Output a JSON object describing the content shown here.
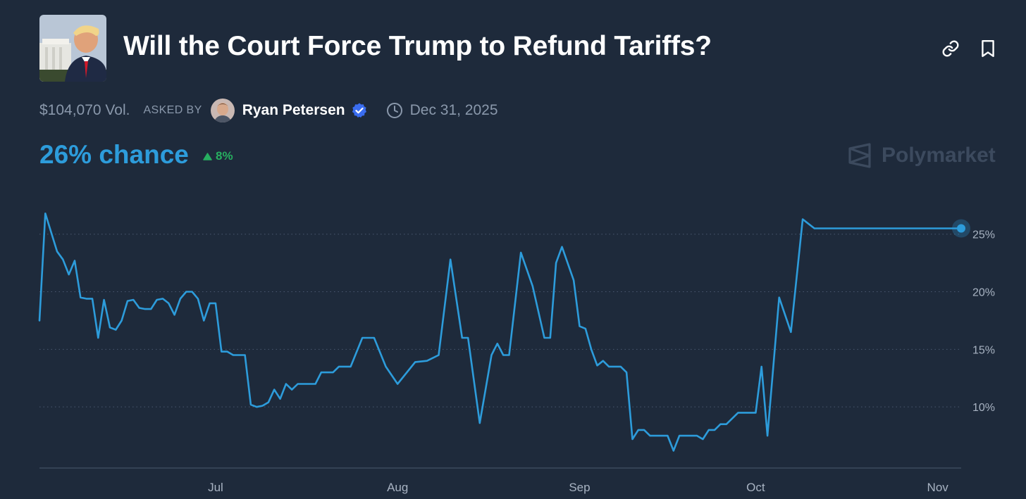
{
  "header": {
    "title": "Will the Court Force Trump to Refund Tariffs?",
    "thumbnail_icon": "market-thumbnail",
    "link_icon": "link-icon",
    "bookmark_icon": "bookmark-icon"
  },
  "meta": {
    "volume": "$104,070 Vol.",
    "asked_by_label": "ASKED BY",
    "author": "Ryan Petersen",
    "verified_icon": "verified-badge-icon",
    "date": "Dec 31, 2025"
  },
  "summary": {
    "chance": "26% chance",
    "change": "8%"
  },
  "brand": {
    "name": "Polymarket"
  },
  "colors": {
    "background": "#1e2a3b",
    "line": "#2d9cdb",
    "positive": "#27ae60",
    "muted": "#8a98ab"
  },
  "chart_data": {
    "type": "line",
    "x_tick_labels": [
      "Jul",
      "Aug",
      "Sep",
      "Oct",
      "Nov"
    ],
    "y_tick_labels": [
      "10%",
      "15%",
      "20%",
      "25%"
    ],
    "y_ticks": [
      10,
      15,
      20,
      25
    ],
    "ylim": [
      5,
      27
    ],
    "grid": true,
    "series": [
      {
        "x": [
          "2025-06-01",
          "2025-06-02",
          "2025-06-04",
          "2025-06-05",
          "2025-06-06",
          "2025-06-07",
          "2025-06-08",
          "2025-06-09",
          "2025-06-10",
          "2025-06-11",
          "2025-06-12",
          "2025-06-13",
          "2025-06-14",
          "2025-06-15",
          "2025-06-16",
          "2025-06-17",
          "2025-06-18",
          "2025-06-19",
          "2025-06-20",
          "2025-06-21",
          "2025-06-22",
          "2025-06-23",
          "2025-06-24",
          "2025-06-25",
          "2025-06-26",
          "2025-06-27",
          "2025-06-28",
          "2025-06-29",
          "2025-06-30",
          "2025-07-01",
          "2025-07-02",
          "2025-07-03",
          "2025-07-04",
          "2025-07-05",
          "2025-07-06",
          "2025-07-07",
          "2025-07-08",
          "2025-07-09",
          "2025-07-10",
          "2025-07-11",
          "2025-07-12",
          "2025-07-13",
          "2025-07-14",
          "2025-07-15",
          "2025-07-16",
          "2025-07-17",
          "2025-07-18",
          "2025-07-19",
          "2025-07-20",
          "2025-07-21",
          "2025-07-22",
          "2025-07-24",
          "2025-07-26",
          "2025-07-28",
          "2025-07-30",
          "2025-08-01",
          "2025-08-04",
          "2025-08-06",
          "2025-08-08",
          "2025-08-10",
          "2025-08-12",
          "2025-08-13",
          "2025-08-15",
          "2025-08-17",
          "2025-08-18",
          "2025-08-19",
          "2025-08-20",
          "2025-08-22",
          "2025-08-24",
          "2025-08-26",
          "2025-08-27",
          "2025-08-28",
          "2025-08-29",
          "2025-08-31",
          "2025-09-01",
          "2025-09-02",
          "2025-09-03",
          "2025-09-04",
          "2025-09-05",
          "2025-09-06",
          "2025-09-07",
          "2025-09-08",
          "2025-09-09",
          "2025-09-10",
          "2025-09-11",
          "2025-09-12",
          "2025-09-13",
          "2025-09-14",
          "2025-09-15",
          "2025-09-16",
          "2025-09-17",
          "2025-09-18",
          "2025-09-19",
          "2025-09-20",
          "2025-09-21",
          "2025-09-22",
          "2025-09-23",
          "2025-09-24",
          "2025-09-25",
          "2025-09-26",
          "2025-09-28",
          "2025-09-30",
          "2025-10-01",
          "2025-10-02",
          "2025-10-03",
          "2025-10-05",
          "2025-10-07",
          "2025-10-09",
          "2025-10-11",
          "2025-10-13",
          "2025-10-15",
          "2025-10-17",
          "2025-10-19",
          "2025-10-21",
          "2025-10-23",
          "2025-10-25",
          "2025-10-27",
          "2025-10-29",
          "2025-10-31",
          "2025-11-01",
          "2025-11-02",
          "2025-11-03",
          "2025-11-04",
          "2025-11-05"
        ],
        "y": [
          17.5,
          26.8,
          23.5,
          22.8,
          21.5,
          22.7,
          19.5,
          19.4,
          19.4,
          16.0,
          19.3,
          16.9,
          16.7,
          17.5,
          19.2,
          19.3,
          18.6,
          18.5,
          18.5,
          19.3,
          19.4,
          19.0,
          18.0,
          19.4,
          20.0,
          20.0,
          19.4,
          17.5,
          19.0,
          19.0,
          14.8,
          14.8,
          14.5,
          14.5,
          14.5,
          10.2,
          10.0,
          10.1,
          10.4,
          11.5,
          10.7,
          12.0,
          11.5,
          12.0,
          12.0,
          12.0,
          12.0,
          13.0,
          13.0,
          13.0,
          13.5,
          13.5,
          16.0,
          16.0,
          13.5,
          12.0,
          13.9,
          14.0,
          14.5,
          22.8,
          16.0,
          16.0,
          8.6,
          14.5,
          15.5,
          14.5,
          14.5,
          23.4,
          20.5,
          16.0,
          16.0,
          22.5,
          23.9,
          21.0,
          17.0,
          16.8,
          15.0,
          13.6,
          14.0,
          13.5,
          13.5,
          13.5,
          13.0,
          7.2,
          8.0,
          8.0,
          7.5,
          7.5,
          7.5,
          7.5,
          6.2,
          7.5,
          7.5,
          7.5,
          7.5,
          7.2,
          8.0,
          8.0,
          8.5,
          8.5,
          9.5,
          9.5,
          9.5,
          13.5,
          7.5,
          19.5,
          16.5,
          26.3,
          25.5,
          25.5,
          25.5,
          25.5,
          25.5,
          25.5,
          25.5,
          25.5,
          25.5,
          25.5,
          25.5,
          25.5,
          25.5,
          25.5,
          25.5,
          25.5
        ]
      }
    ],
    "xlim": [
      "2025-06-01",
      "2025-11-05"
    ]
  }
}
